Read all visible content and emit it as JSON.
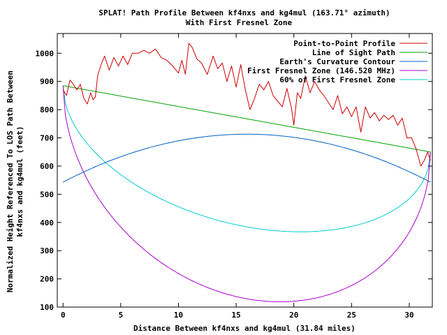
{
  "chart_data": {
    "type": "line",
    "title": "SPLAT! Path Profile Between kf4nxs and kg4mul (163.71° azimuth)",
    "subtitle": "With First Fresnel Zone",
    "xlabel": "Distance Between kf4nxs and kg4mul (31.84 miles)",
    "ylabel": [
      "Normalized Height Referenced To LOS Path Between",
      "kf4nxs and kg4mul (feet)"
    ],
    "xlim": [
      -0.5,
      32.0
    ],
    "ylim": [
      100,
      1070
    ],
    "x_ticks": [
      0,
      5,
      10,
      15,
      20,
      25,
      30
    ],
    "x_tick_labels": [
      "0",
      "5",
      "10",
      "15",
      "20",
      "25",
      "30"
    ],
    "y_ticks": [
      100,
      200,
      300,
      400,
      500,
      600,
      700,
      800,
      900,
      1000
    ],
    "y_tick_labels": [
      "100",
      "200",
      "300",
      "400",
      "500",
      "600",
      "700",
      "800",
      "900",
      "1000"
    ],
    "grid": false,
    "legend_position": "top-right",
    "series": [
      {
        "name": "Point-to-Point Profile",
        "color": "#cc0000",
        "x": [
          0,
          0.3,
          0.6,
          0.9,
          1.2,
          1.5,
          1.8,
          2.1,
          2.4,
          2.6,
          2.8,
          3.0,
          3.3,
          3.6,
          4.0,
          4.4,
          4.8,
          5.2,
          5.6,
          6.0,
          6.5,
          7.0,
          7.5,
          8.0,
          8.5,
          9.0,
          9.5,
          10.0,
          10.3,
          10.6,
          10.9,
          11.2,
          11.6,
          12.0,
          12.5,
          13.0,
          13.4,
          13.8,
          14.2,
          14.6,
          15.0,
          15.4,
          15.8,
          16.2,
          16.6,
          17.0,
          17.4,
          17.8,
          18.2,
          18.6,
          19.0,
          19.4,
          19.8,
          20.0,
          20.3,
          20.6,
          21.0,
          21.4,
          21.8,
          22.2,
          22.6,
          23.0,
          23.4,
          23.8,
          24.2,
          24.6,
          25.0,
          25.4,
          25.8,
          26.2,
          26.6,
          27.0,
          27.4,
          27.8,
          28.2,
          28.6,
          29.0,
          29.4,
          29.8,
          30.2,
          30.6,
          31.0,
          31.3,
          31.6,
          31.84
        ],
        "y": [
          870,
          850,
          905,
          890,
          870,
          890,
          840,
          820,
          860,
          835,
          845,
          920,
          960,
          990,
          940,
          985,
          955,
          990,
          960,
          1000,
          1000,
          1010,
          1000,
          1015,
          985,
          975,
          955,
          930,
          975,
          925,
          1035,
          1020,
          980,
          965,
          925,
          990,
          945,
          965,
          900,
          955,
          880,
          960,
          870,
          800,
          840,
          890,
          870,
          900,
          850,
          830,
          810,
          875,
          805,
          745,
          860,
          840,
          920,
          860,
          900,
          870,
          850,
          825,
          800,
          850,
          785,
          810,
          775,
          810,
          720,
          810,
          770,
          790,
          760,
          780,
          765,
          780,
          745,
          770,
          700,
          700,
          660,
          600,
          620,
          650,
          620
        ]
      },
      {
        "name": "Line of Sight Path",
        "color": "#00a000",
        "x": [
          0,
          31.84
        ],
        "y": [
          885,
          650
        ]
      },
      {
        "name": "Earth's Curvature Contour",
        "color": "#0060c0",
        "curve": "curvature",
        "x_range": [
          0,
          31.84
        ],
        "y_ends": [
          543,
          543
        ],
        "y_mid": 713
      },
      {
        "name": "First Fresnel Zone (146.520 MHz)",
        "color": "#aa00cc",
        "curve": "fresnel",
        "x_range": [
          0,
          31.84
        ],
        "y_ends": [
          885,
          650
        ],
        "radius_max": 638
      },
      {
        "name": "60% of First Fresnel Zone",
        "color": "#00cccc",
        "curve": "fresnel",
        "x_range": [
          0,
          31.84
        ],
        "y_ends": [
          885,
          650
        ],
        "radius_max": 383
      }
    ]
  }
}
